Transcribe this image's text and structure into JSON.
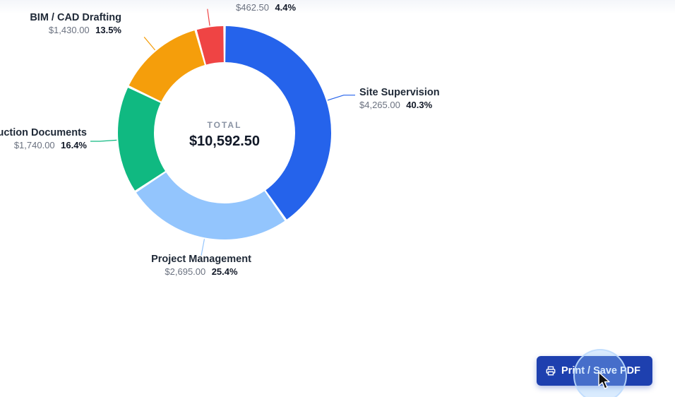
{
  "chart_data": {
    "type": "donut",
    "center": {
      "caption": "TOTAL",
      "total": "$10,592.50"
    },
    "slices": [
      {
        "name": "Site Supervision",
        "amount": "$4,265.00",
        "value": 4265.0,
        "percent": "40.3%",
        "color": "#2563eb"
      },
      {
        "name": "Project Management",
        "amount": "$2,695.00",
        "value": 2695.0,
        "percent": "25.4%",
        "color": "#93c5fd"
      },
      {
        "name": "uction Documents",
        "amount": "$1,740.00",
        "value": 1740.0,
        "percent": "16.4%",
        "color": "#10b981"
      },
      {
        "name": "BIM / CAD Drafting",
        "amount": "$1,430.00",
        "value": 1430.0,
        "percent": "13.5%",
        "color": "#f59e0b"
      },
      {
        "name": "",
        "amount": "$462.50",
        "value": 462.5,
        "percent": "4.4%",
        "color": "#ef4444"
      }
    ]
  },
  "actions": {
    "print_label": "Print / Save PDF"
  }
}
